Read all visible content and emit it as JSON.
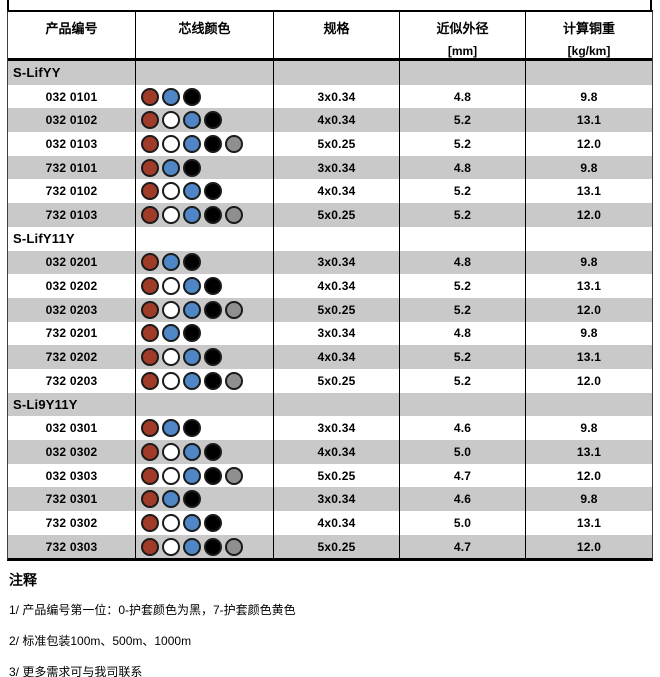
{
  "table": {
    "columns": [
      {
        "label": "产品编号",
        "sub": ""
      },
      {
        "label": "芯线颜色",
        "sub": ""
      },
      {
        "label": "规格",
        "sub": ""
      },
      {
        "label": "近似外径",
        "sub": "[mm]"
      },
      {
        "label": "计算铜重",
        "sub": "[kg/km]"
      }
    ],
    "sections": [
      {
        "name": "S-LifYY",
        "rows": [
          {
            "code": "032 0101",
            "dots": [
              "red",
              "blue",
              "black"
            ],
            "spec": "3x0.34",
            "od": "4.8",
            "weight": "9.8"
          },
          {
            "code": "032 0102",
            "dots": [
              "red",
              "white",
              "blue",
              "black"
            ],
            "spec": "4x0.34",
            "od": "5.2",
            "weight": "13.1"
          },
          {
            "code": "032 0103",
            "dots": [
              "red",
              "white",
              "blue",
              "black",
              "gray"
            ],
            "spec": "5x0.25",
            "od": "5.2",
            "weight": "12.0"
          },
          {
            "code": "732 0101",
            "dots": [
              "red",
              "blue",
              "black"
            ],
            "spec": "3x0.34",
            "od": "4.8",
            "weight": "9.8"
          },
          {
            "code": "732 0102",
            "dots": [
              "red",
              "white",
              "blue",
              "black"
            ],
            "spec": "4x0.34",
            "od": "5.2",
            "weight": "13.1"
          },
          {
            "code": "732 0103",
            "dots": [
              "red",
              "white",
              "blue",
              "black",
              "gray"
            ],
            "spec": "5x0.25",
            "od": "5.2",
            "weight": "12.0"
          }
        ]
      },
      {
        "name": "S-LifY11Y",
        "rows": [
          {
            "code": "032 0201",
            "dots": [
              "red",
              "blue",
              "black"
            ],
            "spec": "3x0.34",
            "od": "4.8",
            "weight": "9.8"
          },
          {
            "code": "032 0202",
            "dots": [
              "red",
              "white",
              "blue",
              "black"
            ],
            "spec": "4x0.34",
            "od": "5.2",
            "weight": "13.1"
          },
          {
            "code": "032 0203",
            "dots": [
              "red",
              "white",
              "blue",
              "black",
              "gray"
            ],
            "spec": "5x0.25",
            "od": "5.2",
            "weight": "12.0"
          },
          {
            "code": "732 0201",
            "dots": [
              "red",
              "blue",
              "black"
            ],
            "spec": "3x0.34",
            "od": "4.8",
            "weight": "9.8"
          },
          {
            "code": "732 0202",
            "dots": [
              "red",
              "white",
              "blue",
              "black"
            ],
            "spec": "4x0.34",
            "od": "5.2",
            "weight": "13.1"
          },
          {
            "code": "732 0203",
            "dots": [
              "red",
              "white",
              "blue",
              "black",
              "gray"
            ],
            "spec": "5x0.25",
            "od": "5.2",
            "weight": "12.0"
          }
        ]
      },
      {
        "name": "S-Li9Y11Y",
        "rows": [
          {
            "code": "032 0301",
            "dots": [
              "red",
              "blue",
              "black"
            ],
            "spec": "3x0.34",
            "od": "4.6",
            "weight": "9.8"
          },
          {
            "code": "032 0302",
            "dots": [
              "red",
              "white",
              "blue",
              "black"
            ],
            "spec": "4x0.34",
            "od": "5.0",
            "weight": "13.1"
          },
          {
            "code": "032 0303",
            "dots": [
              "red",
              "white",
              "blue",
              "black",
              "gray"
            ],
            "spec": "5x0.25",
            "od": "4.7",
            "weight": "12.0"
          },
          {
            "code": "732 0301",
            "dots": [
              "red",
              "blue",
              "black"
            ],
            "spec": "3x0.34",
            "od": "4.6",
            "weight": "9.8"
          },
          {
            "code": "732 0302",
            "dots": [
              "red",
              "white",
              "blue",
              "black"
            ],
            "spec": "4x0.34",
            "od": "5.0",
            "weight": "13.1"
          },
          {
            "code": "732 0303",
            "dots": [
              "red",
              "white",
              "blue",
              "black",
              "gray"
            ],
            "spec": "5x0.25",
            "od": "4.7",
            "weight": "12.0"
          }
        ]
      }
    ]
  },
  "colors": {
    "stripe": "#C9C9C9",
    "dot_border": "#1B1B1B",
    "dots": {
      "red": "#A03B28",
      "white": "#FFFFFF",
      "blue": "#4E86C6",
      "black": "#000000",
      "gray": "#8F8F8F"
    }
  },
  "notes": {
    "title": "注释",
    "items": [
      "1/ 产品编号第一位：0-护套颜色为黑，7-护套颜色黄色",
      "2/ 标准包装100m、500m、1000m",
      "3/ 更多需求可与我司联系"
    ]
  }
}
